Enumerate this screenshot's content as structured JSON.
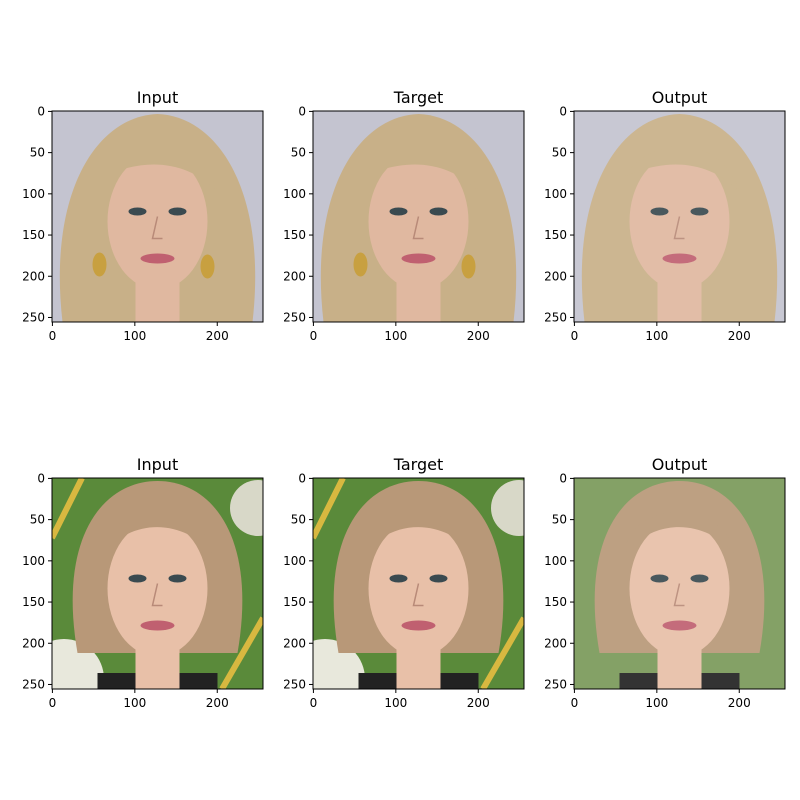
{
  "figure": {
    "panels": [
      {
        "title": "Input",
        "subject": "blonde-woman",
        "variant": "input"
      },
      {
        "title": "Target",
        "subject": "blonde-woman",
        "variant": "target"
      },
      {
        "title": "Output",
        "subject": "blonde-woman",
        "variant": "output"
      },
      {
        "title": "Input",
        "subject": "short-hair-woman",
        "variant": "input"
      },
      {
        "title": "Target",
        "subject": "short-hair-woman",
        "variant": "target"
      },
      {
        "title": "Output",
        "subject": "short-hair-woman",
        "variant": "output"
      }
    ],
    "xticks": [
      "0",
      "100",
      "200"
    ],
    "yticks": [
      "0",
      "50",
      "100",
      "150",
      "200",
      "250"
    ],
    "xtick_values": [
      0,
      100,
      200
    ],
    "ytick_values": [
      0,
      50,
      100,
      150,
      200,
      250
    ],
    "image_extent": 256
  },
  "colors": {
    "row1_background": "#c4c4d0",
    "row1_hair": "#c8b088",
    "row1_skin": "#e0b8a0",
    "row2_background": "#5a8a3a",
    "row2_background_output": "#7a9a5a",
    "row2_hair": "#b89878",
    "row2_skin": "#e8c0a8"
  }
}
